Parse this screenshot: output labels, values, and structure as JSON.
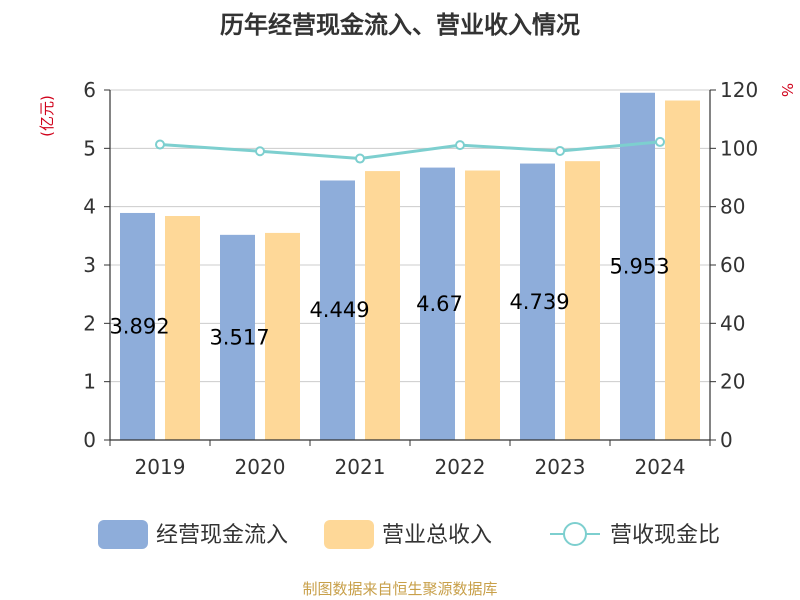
{
  "chart_data": {
    "type": "bar",
    "title": "历年经营现金流入、营业收入情况",
    "categories": [
      "2019",
      "2020",
      "2021",
      "2022",
      "2023",
      "2024"
    ],
    "y_left": {
      "unit": "(亿元)",
      "range": [
        0,
        6
      ],
      "ticks": [
        "0",
        "1",
        "2",
        "3",
        "4",
        "5",
        "6"
      ]
    },
    "y_right": {
      "unit": "%",
      "range": [
        0,
        120
      ],
      "ticks": [
        "0",
        "20",
        "40",
        "60",
        "80",
        "100",
        "120"
      ]
    },
    "grid": true,
    "legend_position": "bottom",
    "series": [
      {
        "name": "经营现金流入",
        "type": "bar",
        "axis": "left",
        "color": "#8eadda",
        "values": [
          3.892,
          3.517,
          4.449,
          4.67,
          4.739,
          5.953
        ],
        "labels": [
          "3.892",
          "3.517",
          "4.449",
          "4.67",
          "4.739",
          "5.953"
        ]
      },
      {
        "name": "营业总收入",
        "type": "bar",
        "axis": "left",
        "color": "#fed898",
        "values": [
          3.84,
          3.55,
          4.61,
          4.62,
          4.78,
          5.82
        ]
      },
      {
        "name": "营收现金比",
        "type": "line",
        "axis": "right",
        "color": "#7dcfcf",
        "values": [
          101.3,
          99.0,
          96.5,
          101.1,
          99.1,
          102.2
        ]
      }
    ]
  },
  "source": "制图数据来自恒生聚源数据库"
}
